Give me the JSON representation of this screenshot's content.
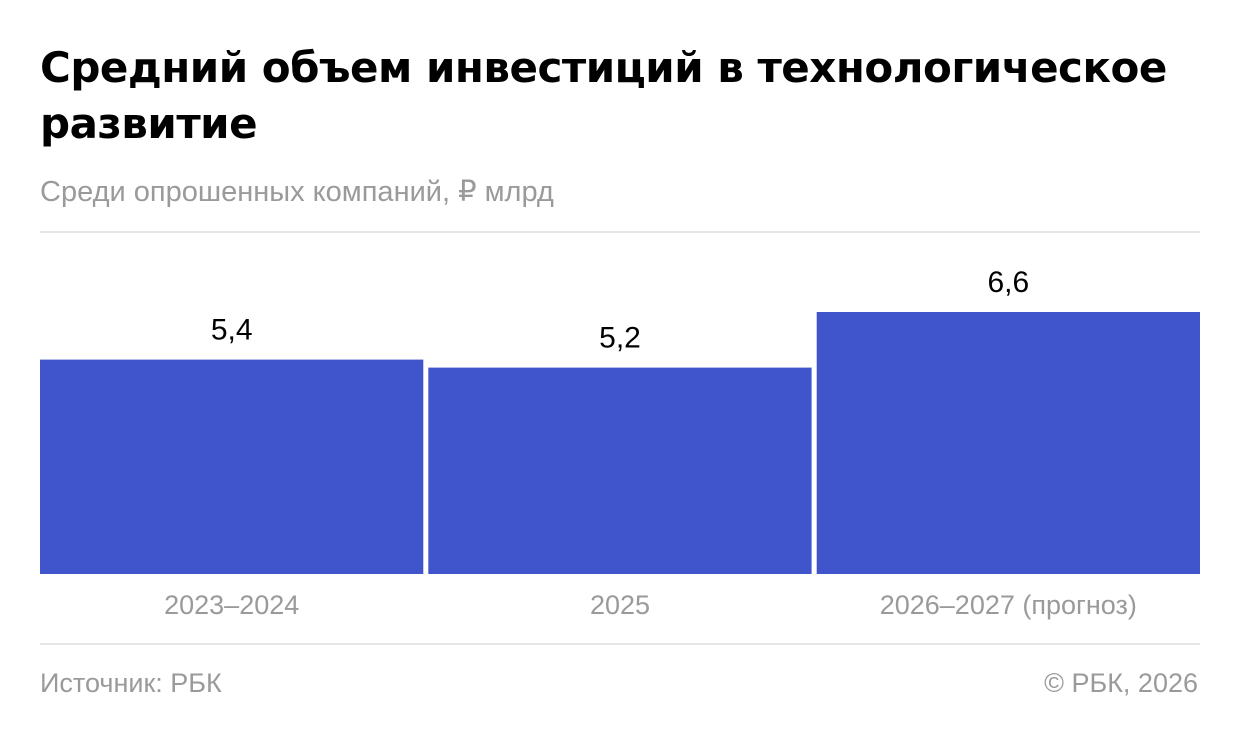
{
  "title": "Средний объем инвестиций в технологическое развитие",
  "subtitle": "Среди опрошенных компаний, ₽ млрд",
  "footer": {
    "source": "Источник: РБК",
    "copyright": "© РБК, 2026"
  },
  "colors": {
    "bar": "#4055cb",
    "value_label": "#000000",
    "category_label": "#9a9a9a",
    "rule": "#e6e6e6"
  },
  "chart_data": {
    "type": "bar",
    "title": "Средний объем инвестиций в технологическое развитие",
    "subtitle": "Среди опрошенных компаний, ₽ млрд",
    "categories": [
      "2023–2024",
      "2025",
      "2026–2027 (прогноз)"
    ],
    "values": [
      5.4,
      5.2,
      6.6
    ],
    "value_labels": [
      "5,4",
      "5,2",
      "6,6"
    ],
    "xlabel": "",
    "ylabel": "",
    "ylim": [
      0,
      6.6
    ],
    "grid": false,
    "legend": "none"
  }
}
